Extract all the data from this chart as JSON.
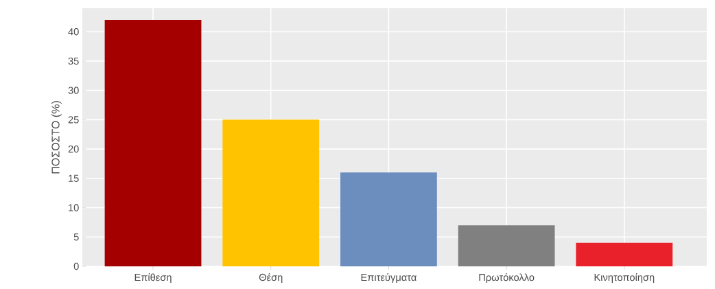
{
  "chart_data": {
    "type": "bar",
    "ylabel": "ΠΟΣΟΣΤΟ (%)",
    "categories": [
      "Επίθεση",
      "Θέση",
      "Επιτεύγματα",
      "Πρωτόκολλο",
      "Κινητοποίηση"
    ],
    "values": [
      42,
      25,
      16,
      7,
      4
    ],
    "colors": [
      "#a50000",
      "#ffc300",
      "#6c8ebf",
      "#808080",
      "#e8212a"
    ],
    "ylim": [
      0,
      44
    ],
    "yticks": [
      0,
      5,
      10,
      15,
      20,
      25,
      30,
      35,
      40
    ],
    "grid": true
  }
}
